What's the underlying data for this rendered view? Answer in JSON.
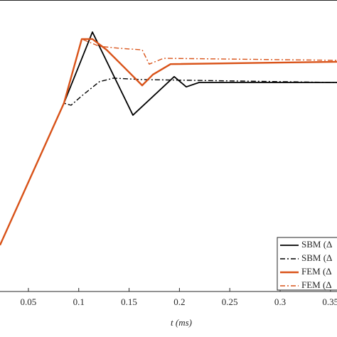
{
  "chart_data": {
    "type": "line",
    "xlabel": "t (ms)",
    "xlim": [
      0.0218,
      0.3565
    ],
    "ylim": [
      0,
      1
    ],
    "xticks": [
      0.05,
      0.1,
      0.15,
      0.2,
      0.25,
      0.3,
      0.35
    ],
    "grid": false,
    "legend": "lower right",
    "series": [
      {
        "name": "SBM (Δ",
        "color": "#000000",
        "dash": "solid",
        "width": 1.8,
        "x": [
          0.0218,
          0.0853,
          0.1136,
          0.1538,
          0.1948,
          0.2068,
          0.2195,
          0.3565
        ],
        "values": [
          0.159,
          0.646,
          0.89,
          0.605,
          0.737,
          0.702,
          0.717,
          0.717
        ]
      },
      {
        "name": "SBM (Δ",
        "color": "#000000",
        "dash": "dashdot",
        "width": 1.4,
        "x": [
          0.0218,
          0.0853,
          0.0924,
          0.103,
          0.1206,
          0.1347,
          0.163,
          0.3565
        ],
        "values": [
          0.159,
          0.646,
          0.639,
          0.671,
          0.72,
          0.732,
          0.727,
          0.717
        ]
      },
      {
        "name": "FEM (Δ",
        "color": "#d95319",
        "dash": "solid",
        "width": 2.4,
        "x": [
          0.0218,
          0.0853,
          0.103,
          0.1136,
          0.1277,
          0.1489,
          0.163,
          0.1736,
          0.1912,
          0.3565
        ],
        "values": [
          0.159,
          0.646,
          0.866,
          0.866,
          0.829,
          0.756,
          0.707,
          0.744,
          0.78,
          0.788
        ]
      },
      {
        "name": "FEM (Δ",
        "color": "#d95319",
        "dash": "dashdot",
        "width": 1.4,
        "x": [
          0.0218,
          0.0853,
          0.103,
          0.1206,
          0.1418,
          0.163,
          0.17,
          0.1842,
          0.3565
        ],
        "values": [
          0.159,
          0.646,
          0.866,
          0.841,
          0.834,
          0.829,
          0.78,
          0.8,
          0.793
        ]
      }
    ]
  }
}
